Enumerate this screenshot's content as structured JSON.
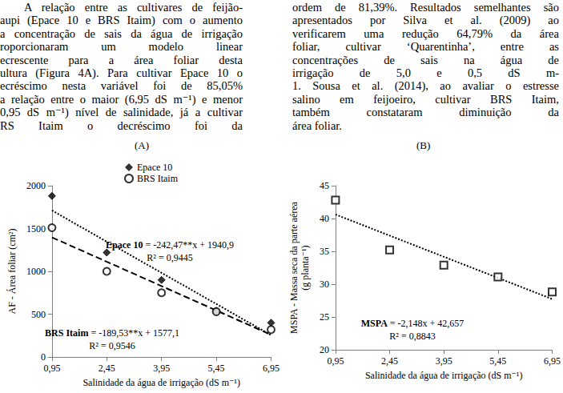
{
  "text": {
    "left_column": [
      "A relação entre as cultivares de feijão-",
      "aupi (Epace 10 e BRS Itaim) com o aumento",
      "a concentração de sais da água de irrigação",
      "roporcionaram um modelo linear",
      "ecrescente para a área foliar desta",
      "ultura (Figura 4A). Para cultivar Epace 10 o",
      "ecréscimo nesta variável foi de 85,05%",
      "a relação entre o maior (6,95 dS m⁻¹) e menor",
      "0,95 dS m⁻¹) nível de salinidade, já a cultivar",
      "RS Itaim o decréscimo foi da"
    ],
    "right_column": [
      "ordem de 81,39%. Resultados semelhantes são",
      "apresentados por Silva et al. (2009) ao",
      "verificarem uma redução 64,79% da área",
      "foliar, cultivar ‘Quarentinha’, entre as",
      "concentrações de sais na água de",
      "irrigação de 5,0 e 0,5 dS m-",
      "1. Sousa et al. (2014), ao avaliar o estresse",
      "salino em feijoeiro, cultivar BRS Itaim,",
      "também constataram diminuição da",
      "área foliar."
    ]
  },
  "chart_data": [
    {
      "type": "scatter",
      "panel_label": "(A)",
      "xlabel": "Salinidade da água de irrigação (dS m⁻¹)",
      "ylabel": "AF - Área foliar (cm²)",
      "x": [
        0.95,
        2.45,
        3.95,
        5.45,
        6.95
      ],
      "xlim": [
        0.95,
        6.95
      ],
      "xticks": [
        {
          "value": 0.95,
          "label": "0,95"
        },
        {
          "value": 2.45,
          "label": "2,45"
        },
        {
          "value": 3.95,
          "label": "3,95"
        },
        {
          "value": 5.45,
          "label": "5,45"
        },
        {
          "value": 6.95,
          "label": "6,95"
        }
      ],
      "ylim": [
        0,
        2000
      ],
      "yticks": [
        0,
        500,
        1000,
        1500,
        2000
      ],
      "grid": false,
      "legend": "top",
      "series": [
        {
          "name": "Epace 10",
          "color": "#000000",
          "marker": "diamond",
          "values": [
            1880,
            1220,
            900,
            540,
            400
          ],
          "trendline": {
            "slope": -242.47,
            "intercept": 1940.9,
            "line_style": "dotted",
            "equation": "Epace 10 = -242,47**x + 1940,9",
            "r2": "R² = 0,9445"
          }
        },
        {
          "name": "BRS Itaim",
          "color": "#000000",
          "marker": "emptyCircle",
          "values": [
            1510,
            1000,
            750,
            530,
            320
          ],
          "trendline": {
            "slope": -189.53,
            "intercept": 1577.1,
            "line_style": "dashed",
            "equation": "BRS Itaim = -189,53**x + 1577,1",
            "r2": "R² = 0,9546"
          }
        }
      ]
    },
    {
      "type": "scatter",
      "panel_label": "(B)",
      "xlabel": "Salinidade da água de irrigação (dS m⁻¹)",
      "ylabel": "MSPA - Massa seca da parte aérea\n(g planta⁻¹)",
      "x": [
        0.95,
        2.45,
        3.95,
        5.45,
        6.95
      ],
      "xlim": [
        0.95,
        6.95
      ],
      "xticks": [
        {
          "value": 0.95,
          "label": "0,95"
        },
        {
          "value": 2.45,
          "label": "2,45"
        },
        {
          "value": 3.95,
          "label": "3,95"
        },
        {
          "value": 5.45,
          "label": "5,45"
        },
        {
          "value": 6.95,
          "label": "6,95"
        }
      ],
      "ylim": [
        20,
        45
      ],
      "yticks": [
        20,
        25,
        30,
        35,
        40,
        45
      ],
      "grid": false,
      "series": [
        {
          "name": "MSPA",
          "color": "#000000",
          "marker": "emptyRect",
          "values": [
            42.8,
            35.2,
            32.9,
            31.1,
            28.8
          ],
          "trendline": {
            "slope": -2.148,
            "intercept": 42.657,
            "line_style": "dotted",
            "equation": "MSPA = -2,148x + 42,657",
            "r2": "R² = 0,8843"
          }
        }
      ]
    }
  ]
}
